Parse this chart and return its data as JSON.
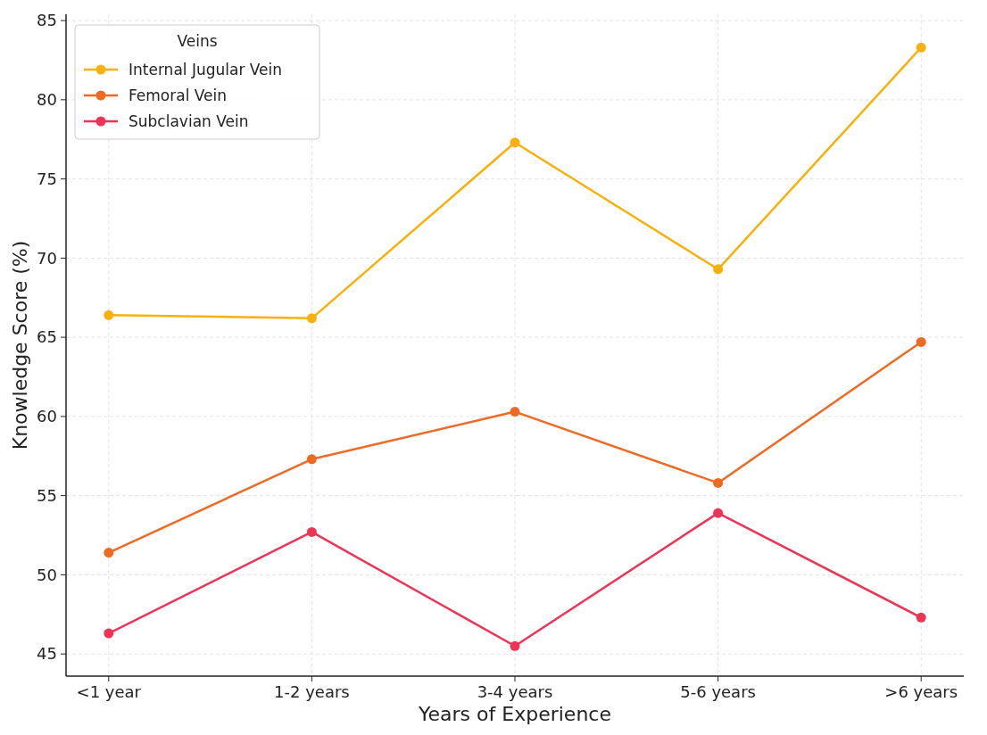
{
  "chart_data": {
    "type": "line",
    "xlabel": "Years of Experience",
    "ylabel": "Knowledge Score (%)",
    "categories": [
      "<1 year",
      "1-2 years",
      "3-4 years",
      "5-6 years",
      ">6 years"
    ],
    "series": [
      {
        "name": "Internal Jugular Vein",
        "color": "#f8b00d",
        "values": [
          66.4,
          66.2,
          77.3,
          69.3,
          83.3
        ]
      },
      {
        "name": "Femoral Vein",
        "color": "#ee6a22",
        "values": [
          51.4,
          57.3,
          60.3,
          55.8,
          64.7
        ]
      },
      {
        "name": "Subclavian Vein",
        "color": "#ee3456",
        "values": [
          46.3,
          52.7,
          45.5,
          53.9,
          47.3
        ]
      }
    ],
    "ylim": [
      43.6,
      85.4
    ],
    "yticks": [
      45,
      50,
      55,
      60,
      65,
      70,
      75,
      80,
      85
    ],
    "grid": true,
    "legend": "top left",
    "legend_title": "Veins",
    "marker": "circle",
    "line_style": "solid"
  }
}
